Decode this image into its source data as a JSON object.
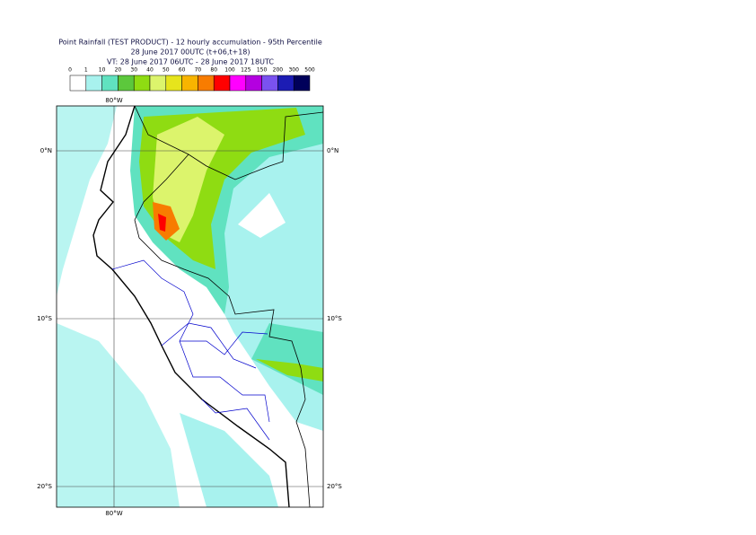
{
  "header": {
    "title": "Point Rainfall (TEST PRODUCT) - 12 hourly accumulation - 95th Percentile",
    "base_time": "28 June 2017 00UTC (t+06,t+18)",
    "valid_time": "VT: 28 June 2017 06UTC - 28 June 2017 18UTC"
  },
  "legend": {
    "labels": [
      "0",
      "1",
      "10",
      "20",
      "30",
      "40",
      "50",
      "60",
      "70",
      "80",
      "100",
      "125",
      "150",
      "200",
      "300",
      "500"
    ],
    "colors": [
      "#ffffff",
      "#a8f2ee",
      "#60e2c0",
      "#5cc83c",
      "#8fdc12",
      "#dcf46c",
      "#e6e41c",
      "#f8b400",
      "#f87c00",
      "#ff0000",
      "#ff00ff",
      "#b400e0",
      "#7a52f0",
      "#1c1cb4",
      "#00005a"
    ]
  },
  "map": {
    "lon_label_top": "80°W",
    "lon_label_bottom": "80°W",
    "lat_labels": [
      "0°N",
      "10°S",
      "20°S"
    ]
  }
}
